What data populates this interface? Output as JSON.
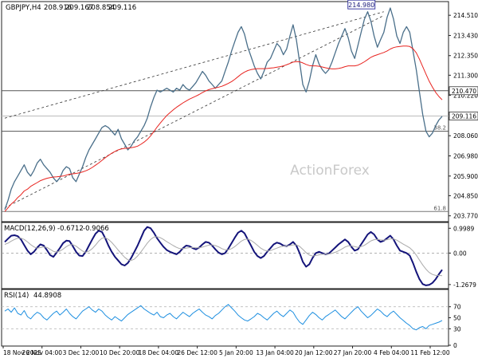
{
  "chart_data": [
    {
      "type": "line",
      "panel": "price",
      "title": "GBPJPY,H4",
      "ohlc_header": [
        "208.916",
        "209.167",
        "208.854",
        "209.116"
      ],
      "watermark": "ActionForex",
      "y_ticks": [
        {
          "value": 214.51,
          "label": "214.510"
        },
        {
          "value": 213.43,
          "label": "213.430"
        },
        {
          "value": 212.35,
          "label": "212.350"
        },
        {
          "value": 211.3,
          "label": "211.300"
        },
        {
          "value": 210.22,
          "label": "210.220"
        },
        {
          "value": 208.06,
          "label": "208.060"
        },
        {
          "value": 206.98,
          "label": "206.980"
        },
        {
          "value": 205.9,
          "label": "205.900"
        },
        {
          "value": 204.85,
          "label": "204.850"
        },
        {
          "value": 203.77,
          "label": "203.770"
        }
      ],
      "ylim": [
        203.5,
        215.2
      ],
      "horizontal_lines": [
        {
          "value": 210.47,
          "label": "210.470",
          "style": "solid",
          "color": "#555555"
        },
        {
          "value": 209.116,
          "label": "209.116",
          "style": "solid",
          "color": "#bbbbbb",
          "current": true
        },
        {
          "value": 208.3,
          "label": "38.2",
          "style": "solid",
          "color": "#555555"
        },
        {
          "value": 204.0,
          "label": "61.8",
          "style": "solid",
          "color": "#777777"
        }
      ],
      "trend_channel": {
        "upper": {
          "x": [
            0,
            117
          ],
          "y": [
            209.0,
            214.7
          ]
        },
        "lower": {
          "x": [
            0,
            117
          ],
          "y": [
            204.2,
            214.5
          ]
        },
        "style": "dashed"
      },
      "peak_annotation": {
        "x": 116,
        "value": 214.98,
        "label": "214.980"
      },
      "series": [
        {
          "kind": "close",
          "color": "#4a6f8a",
          "values": [
            204.1,
            204.6,
            205.2,
            205.6,
            205.9,
            206.2,
            206.5,
            206.1,
            205.9,
            206.2,
            206.6,
            206.8,
            206.5,
            206.3,
            206.1,
            205.8,
            205.6,
            205.8,
            206.2,
            206.4,
            206.3,
            205.8,
            205.6,
            206.0,
            206.4,
            206.9,
            207.3,
            207.6,
            207.9,
            208.2,
            208.5,
            208.6,
            208.5,
            208.3,
            208.1,
            208.4,
            207.9,
            207.6,
            207.3,
            207.5,
            207.8,
            208.0,
            208.3,
            208.6,
            209.0,
            209.6,
            210.1,
            210.5,
            210.4,
            210.5,
            210.6,
            210.5,
            210.4,
            210.6,
            210.5,
            210.8,
            210.6,
            210.5,
            210.7,
            210.9,
            211.2,
            211.5,
            211.3,
            211.0,
            210.8,
            210.6,
            210.8,
            211.0,
            211.5,
            212.0,
            212.6,
            213.1,
            213.6,
            213.9,
            213.5,
            212.8,
            212.3,
            211.8,
            211.4,
            211.1,
            211.5,
            212.0,
            212.2,
            212.6,
            213.0,
            212.8,
            212.4,
            212.7,
            213.4,
            214.0,
            213.2,
            212.0,
            210.8,
            210.4,
            211.0,
            211.8,
            212.4,
            211.9,
            211.6,
            211.4,
            211.6,
            212.0,
            212.5,
            213.0,
            213.4,
            213.8,
            213.3,
            212.6,
            212.2,
            212.9,
            213.6,
            214.3,
            214.7,
            214.2,
            213.4,
            212.8,
            213.2,
            213.6,
            214.4,
            214.9,
            214.3,
            213.4,
            213.0,
            213.6,
            213.9,
            213.6,
            212.6,
            211.6,
            210.4,
            209.2,
            208.3,
            208.0,
            208.2,
            208.6,
            208.9,
            209.1
          ]
        },
        {
          "kind": "moving_average",
          "color": "#e8231f",
          "values": [
            204.0,
            204.2,
            204.4,
            204.55,
            204.75,
            204.9,
            205.1,
            205.2,
            205.35,
            205.45,
            205.55,
            205.65,
            205.72,
            205.78,
            205.82,
            205.85,
            205.86,
            205.88,
            205.9,
            205.95,
            206.0,
            206.02,
            206.04,
            206.07,
            206.12,
            206.18,
            206.26,
            206.36,
            206.48,
            206.6,
            206.74,
            206.88,
            207.0,
            207.12,
            207.22,
            207.3,
            207.35,
            207.38,
            207.4,
            207.42,
            207.45,
            207.5,
            207.6,
            207.72,
            207.86,
            208.05,
            208.28,
            208.52,
            208.74,
            208.95,
            209.14,
            209.3,
            209.45,
            209.58,
            209.7,
            209.82,
            209.92,
            210.02,
            210.1,
            210.18,
            210.27,
            210.37,
            210.46,
            210.53,
            210.58,
            210.62,
            210.66,
            210.71,
            210.78,
            210.86,
            210.96,
            211.08,
            211.22,
            211.36,
            211.47,
            211.55,
            211.6,
            211.63,
            211.65,
            211.65,
            211.65,
            211.66,
            211.68,
            211.7,
            211.73,
            211.76,
            211.8,
            211.86,
            211.93,
            212.0,
            212.03,
            212.02,
            211.96,
            211.88,
            211.82,
            211.8,
            211.8,
            211.78,
            211.74,
            211.7,
            211.66,
            211.64,
            211.64,
            211.66,
            211.7,
            211.76,
            211.8,
            211.8,
            211.8,
            211.84,
            211.92,
            212.02,
            212.14,
            212.26,
            212.34,
            212.4,
            212.46,
            212.52,
            212.6,
            212.7,
            212.78,
            212.82,
            212.84,
            212.86,
            212.86,
            212.84,
            212.72,
            212.5,
            212.16,
            211.76,
            211.36,
            210.98,
            210.66,
            210.38,
            210.16,
            209.98
          ]
        }
      ]
    },
    {
      "type": "line",
      "panel": "macd",
      "title": "MACD(12,26,9)",
      "header_values": [
        "-0.6712",
        "-0.9066"
      ],
      "y_ticks": [
        {
          "value": 0.9989,
          "label": "0.9989"
        },
        {
          "value": 0.0,
          "label": "0.00"
        },
        {
          "value": -1.2679,
          "label": "-1.2679"
        }
      ],
      "ylim": [
        -1.4,
        1.2
      ],
      "series": [
        {
          "kind": "macd",
          "color": "#14147a",
          "values": [
            0.45,
            0.58,
            0.7,
            0.72,
            0.68,
            0.55,
            0.32,
            0.1,
            -0.05,
            0.05,
            0.22,
            0.35,
            0.3,
            0.12,
            -0.08,
            -0.15,
            0.02,
            0.2,
            0.4,
            0.5,
            0.48,
            0.28,
            0.05,
            -0.1,
            -0.12,
            0.05,
            0.3,
            0.55,
            0.78,
            0.9,
            0.85,
            0.6,
            0.3,
            0.05,
            -0.15,
            -0.3,
            -0.45,
            -0.5,
            -0.4,
            -0.2,
            0.05,
            0.3,
            0.6,
            0.9,
            1.05,
            1.0,
            0.82,
            0.6,
            0.42,
            0.25,
            0.12,
            0.05,
            0.0,
            -0.05,
            0.05,
            0.2,
            0.3,
            0.28,
            0.2,
            0.15,
            0.22,
            0.35,
            0.45,
            0.42,
            0.3,
            0.15,
            0.02,
            -0.05,
            0.0,
            0.18,
            0.4,
            0.62,
            0.82,
            0.9,
            0.8,
            0.55,
            0.3,
            0.05,
            -0.12,
            -0.2,
            -0.12,
            0.05,
            0.2,
            0.35,
            0.42,
            0.38,
            0.3,
            0.28,
            0.35,
            0.45,
            0.3,
            0.0,
            -0.35,
            -0.55,
            -0.45,
            -0.2,
            0.0,
            0.05,
            0.0,
            -0.05,
            -0.02,
            0.1,
            0.22,
            0.35,
            0.45,
            0.55,
            0.45,
            0.25,
            0.1,
            0.15,
            0.35,
            0.55,
            0.75,
            0.85,
            0.75,
            0.55,
            0.45,
            0.5,
            0.6,
            0.7,
            0.55,
            0.3,
            0.1,
            0.05,
            0.0,
            -0.1,
            -0.4,
            -0.75,
            -1.05,
            -1.25,
            -1.3,
            -1.28,
            -1.2,
            -1.05,
            -0.85,
            -0.67
          ]
        },
        {
          "kind": "signal",
          "color": "#aaaaaa",
          "values": [
            0.35,
            0.4,
            0.48,
            0.55,
            0.6,
            0.6,
            0.55,
            0.45,
            0.34,
            0.25,
            0.2,
            0.22,
            0.25,
            0.23,
            0.15,
            0.07,
            0.04,
            0.08,
            0.16,
            0.26,
            0.33,
            0.34,
            0.28,
            0.18,
            0.08,
            0.03,
            0.08,
            0.18,
            0.32,
            0.48,
            0.6,
            0.62,
            0.55,
            0.43,
            0.28,
            0.12,
            -0.03,
            -0.17,
            -0.27,
            -0.3,
            -0.24,
            -0.12,
            0.04,
            0.22,
            0.4,
            0.55,
            0.64,
            0.66,
            0.62,
            0.55,
            0.46,
            0.38,
            0.3,
            0.23,
            0.18,
            0.18,
            0.2,
            0.22,
            0.22,
            0.21,
            0.21,
            0.24,
            0.28,
            0.32,
            0.33,
            0.3,
            0.25,
            0.18,
            0.13,
            0.13,
            0.18,
            0.26,
            0.37,
            0.48,
            0.55,
            0.56,
            0.51,
            0.42,
            0.31,
            0.2,
            0.12,
            0.08,
            0.1,
            0.15,
            0.2,
            0.25,
            0.28,
            0.29,
            0.3,
            0.33,
            0.33,
            0.27,
            0.15,
            0.02,
            -0.08,
            -0.12,
            -0.1,
            -0.07,
            -0.05,
            -0.04,
            -0.04,
            -0.01,
            0.03,
            0.09,
            0.16,
            0.24,
            0.29,
            0.29,
            0.26,
            0.23,
            0.26,
            0.31,
            0.4,
            0.49,
            0.54,
            0.55,
            0.53,
            0.52,
            0.54,
            0.57,
            0.57,
            0.52,
            0.44,
            0.36,
            0.29,
            0.21,
            0.09,
            -0.08,
            -0.28,
            -0.48,
            -0.65,
            -0.78,
            -0.86,
            -0.9,
            -0.9,
            -0.91
          ]
        }
      ]
    },
    {
      "type": "line",
      "panel": "rsi",
      "title": "RSI(14)",
      "header_values": [
        "44.8908"
      ],
      "y_ticks": [
        {
          "value": 70,
          "label": "70"
        },
        {
          "value": 50,
          "label": "50"
        },
        {
          "value": 30,
          "label": "30"
        },
        {
          "value": 0,
          "label": "0"
        }
      ],
      "ylim": [
        0,
        100
      ],
      "series": [
        {
          "kind": "rsi",
          "color": "#1e8fe0",
          "values": [
            62,
            66,
            60,
            68,
            58,
            55,
            63,
            52,
            48,
            55,
            60,
            57,
            50,
            46,
            52,
            58,
            62,
            55,
            60,
            66,
            58,
            52,
            48,
            55,
            62,
            66,
            70,
            64,
            60,
            66,
            62,
            55,
            50,
            46,
            52,
            48,
            44,
            50,
            56,
            60,
            64,
            68,
            72,
            66,
            62,
            58,
            55,
            60,
            52,
            50,
            55,
            58,
            52,
            48,
            54,
            60,
            56,
            52,
            58,
            62,
            66,
            60,
            55,
            52,
            48,
            54,
            58,
            64,
            70,
            74,
            68,
            62,
            55,
            50,
            46,
            44,
            48,
            52,
            58,
            55,
            50,
            46,
            52,
            58,
            62,
            56,
            52,
            58,
            64,
            60,
            50,
            42,
            38,
            46,
            54,
            60,
            56,
            50,
            46,
            52,
            56,
            60,
            64,
            58,
            52,
            48,
            54,
            60,
            66,
            70,
            62,
            56,
            50,
            54,
            60,
            66,
            62,
            56,
            52,
            58,
            62,
            56,
            50,
            45,
            40,
            36,
            30,
            28,
            32,
            34,
            30,
            36,
            38,
            40,
            42,
            45
          ]
        }
      ]
    }
  ],
  "x_axis_labels": [
    "18 Nov 2025",
    "26 Nov 04:00",
    "3 Dec 12:00",
    "10 Dec 20:00",
    "18 Dec 04:00",
    "26 Dec 12:00",
    "5 Jan 20:00",
    "13 Jan 04:00",
    "20 Jan 12:00",
    "27 Jan 20:00",
    "4 Feb 04:00",
    "11 Feb 12:00"
  ]
}
